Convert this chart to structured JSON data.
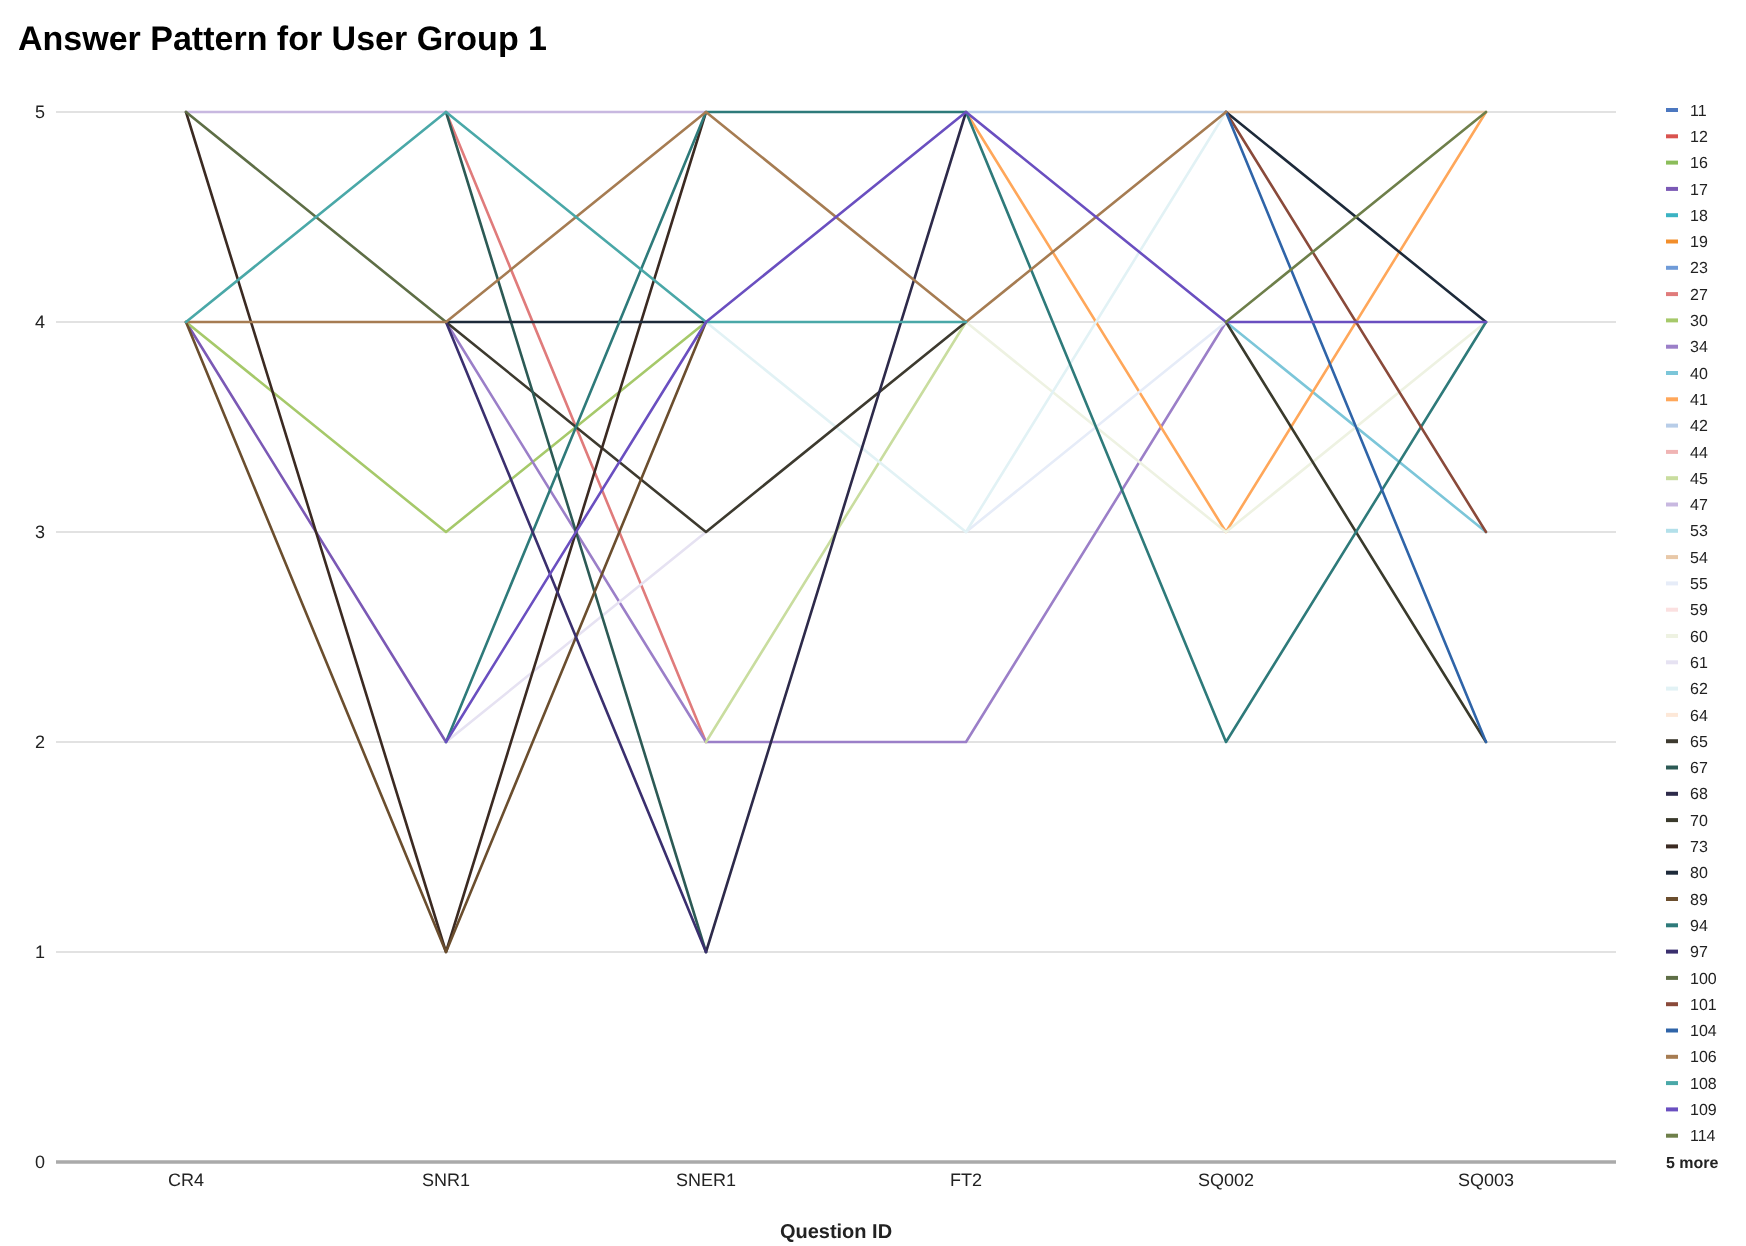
{
  "chart_data": {
    "type": "line",
    "title": "Answer Pattern for User Group 1",
    "xlabel": "Question ID",
    "categories": [
      "CR4",
      "SNR1",
      "SNER1",
      "FT2",
      "SQ002",
      "SQ003"
    ],
    "ylim": [
      0,
      5
    ],
    "yticks": [
      0,
      1,
      2,
      3,
      4,
      5
    ],
    "grid": "y",
    "legend": "right",
    "marker": "none",
    "annotations": [
      "5 more"
    ],
    "series": [
      {
        "name": "11",
        "color": "#4c78c0",
        "values": [
          null,
          null,
          null,
          null,
          null,
          null
        ]
      },
      {
        "name": "12",
        "color": "#d9534f",
        "values": [
          null,
          null,
          null,
          null,
          null,
          null
        ]
      },
      {
        "name": "16",
        "color": "#8bbd5a",
        "values": [
          null,
          null,
          null,
          null,
          null,
          null
        ]
      },
      {
        "name": "17",
        "color": "#7b59b5",
        "values": [
          4,
          2,
          null,
          null,
          null,
          null
        ]
      },
      {
        "name": "18",
        "color": "#3bb3c3",
        "values": [
          null,
          null,
          null,
          null,
          null,
          null
        ]
      },
      {
        "name": "19",
        "color": "#f28e2b",
        "values": [
          null,
          null,
          null,
          null,
          null,
          null
        ]
      },
      {
        "name": "23",
        "color": "#6f9bd8",
        "values": [
          null,
          null,
          null,
          null,
          null,
          null
        ]
      },
      {
        "name": "27",
        "color": "#e07b7b",
        "values": [
          null,
          5,
          2,
          null,
          null,
          null
        ]
      },
      {
        "name": "30",
        "color": "#a6c96a",
        "values": [
          4,
          3,
          4,
          null,
          null,
          null
        ]
      },
      {
        "name": "34",
        "color": "#9b7fc8",
        "values": [
          null,
          4,
          2,
          2,
          4,
          null
        ]
      },
      {
        "name": "40",
        "color": "#7cc6d9",
        "values": [
          null,
          null,
          null,
          null,
          4,
          3
        ]
      },
      {
        "name": "41",
        "color": "#ffa75a",
        "values": [
          null,
          null,
          null,
          5,
          3,
          5
        ]
      },
      {
        "name": "42",
        "color": "#b8cde8",
        "values": [
          null,
          null,
          null,
          5,
          5,
          null
        ]
      },
      {
        "name": "44",
        "color": "#f0b4b4",
        "values": [
          null,
          null,
          null,
          null,
          null,
          null
        ]
      },
      {
        "name": "45",
        "color": "#c9dd9f",
        "values": [
          null,
          null,
          2,
          4,
          null,
          null
        ]
      },
      {
        "name": "47",
        "color": "#c8b8e0",
        "values": [
          5,
          5,
          5,
          null,
          null,
          null
        ]
      },
      {
        "name": "53",
        "color": "#b3e0ea",
        "values": [
          null,
          null,
          null,
          null,
          null,
          null
        ]
      },
      {
        "name": "54",
        "color": "#e8c8a8",
        "values": [
          null,
          null,
          null,
          null,
          5,
          5
        ]
      },
      {
        "name": "55",
        "color": "#e6ecf8",
        "values": [
          null,
          null,
          null,
          3,
          4,
          null
        ]
      },
      {
        "name": "59",
        "color": "#fbe0e0",
        "values": [
          null,
          null,
          null,
          null,
          null,
          null
        ]
      },
      {
        "name": "60",
        "color": "#eef2e2",
        "values": [
          null,
          null,
          null,
          4,
          3,
          4
        ]
      },
      {
        "name": "61",
        "color": "#e6e2f2",
        "values": [
          null,
          2,
          3,
          null,
          null,
          null
        ]
      },
      {
        "name": "62",
        "color": "#e2f2f5",
        "values": [
          null,
          null,
          4,
          3,
          5,
          null
        ]
      },
      {
        "name": "64",
        "color": "#fde8d8",
        "values": [
          null,
          null,
          null,
          null,
          null,
          null
        ]
      },
      {
        "name": "65",
        "color": "#3d3a2f",
        "values": [
          null,
          4,
          3,
          4,
          null,
          null
        ]
      },
      {
        "name": "67",
        "color": "#2c5a55",
        "values": [
          null,
          5,
          1,
          null,
          null,
          null
        ]
      },
      {
        "name": "68",
        "color": "#2d2a4a",
        "values": [
          null,
          null,
          1,
          5,
          null,
          null
        ]
      },
      {
        "name": "70",
        "color": "#3a3a2c",
        "values": [
          null,
          null,
          null,
          null,
          4,
          2
        ]
      },
      {
        "name": "73",
        "color": "#3b2a22",
        "values": [
          5,
          1,
          5,
          null,
          null,
          null
        ]
      },
      {
        "name": "80",
        "color": "#1d2a3a",
        "values": [
          null,
          4,
          4,
          null,
          5,
          4
        ]
      },
      {
        "name": "89",
        "color": "#6b4e2e",
        "values": [
          4,
          1,
          4,
          null,
          null,
          null
        ]
      },
      {
        "name": "94",
        "color": "#2e7a7a",
        "values": [
          null,
          2,
          5,
          5,
          2,
          4
        ]
      },
      {
        "name": "97",
        "color": "#3a2f6e",
        "values": [
          null,
          4,
          1,
          null,
          null,
          null
        ]
      },
      {
        "name": "100",
        "color": "#5e6e46",
        "values": [
          5,
          4,
          null,
          null,
          null,
          null
        ]
      },
      {
        "name": "101",
        "color": "#8a4a3a",
        "values": [
          null,
          null,
          null,
          null,
          5,
          3
        ]
      },
      {
        "name": "104",
        "color": "#2f64a8",
        "values": [
          null,
          null,
          null,
          null,
          5,
          2
        ]
      },
      {
        "name": "106",
        "color": "#a67c52",
        "values": [
          4,
          4,
          5,
          4,
          5,
          null
        ]
      },
      {
        "name": "108",
        "color": "#4aa8a8",
        "values": [
          4,
          5,
          4,
          4,
          null,
          null
        ]
      },
      {
        "name": "109",
        "color": "#6a4fc0",
        "values": [
          null,
          2,
          4,
          5,
          4,
          4
        ]
      },
      {
        "name": "114",
        "color": "#6e7f4a",
        "values": [
          null,
          null,
          null,
          null,
          4,
          5
        ]
      }
    ]
  }
}
